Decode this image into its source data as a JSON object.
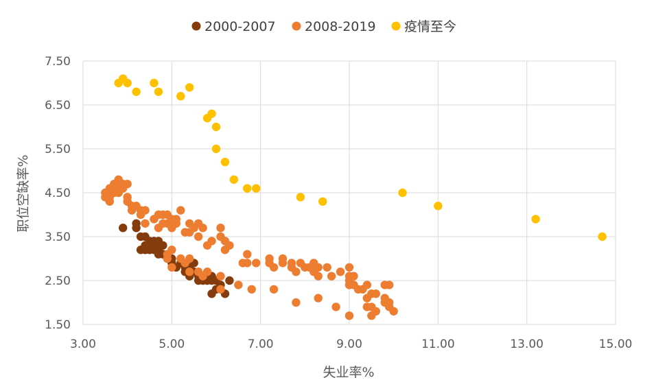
{
  "chart_data": {
    "type": "scatter",
    "title": "",
    "xlabel": "失业率%",
    "ylabel": "职位空缺率%",
    "xlim": [
      3.0,
      15.0
    ],
    "ylim": [
      1.5,
      7.5
    ],
    "xticks": [
      "3.00",
      "5.00",
      "7.00",
      "9.00",
      "11.00",
      "13.00",
      "15.00"
    ],
    "yticks": [
      "1.50",
      "2.50",
      "3.50",
      "4.50",
      "5.50",
      "6.50",
      "7.50"
    ],
    "grid": "vertical-and-horizontal",
    "legend_position": "top-center",
    "series": [
      {
        "name": "2000-2007",
        "color": "#843C0C",
        "points": [
          [
            3.9,
            3.7
          ],
          [
            4.2,
            3.7
          ],
          [
            4.2,
            3.8
          ],
          [
            4.3,
            3.5
          ],
          [
            4.3,
            3.2
          ],
          [
            4.4,
            3.5
          ],
          [
            4.4,
            3.3
          ],
          [
            4.4,
            3.2
          ],
          [
            4.5,
            3.4
          ],
          [
            4.5,
            3.3
          ],
          [
            4.5,
            3.2
          ],
          [
            4.6,
            3.4
          ],
          [
            4.6,
            3.3
          ],
          [
            4.6,
            3.2
          ],
          [
            4.7,
            3.4
          ],
          [
            4.7,
            3.3
          ],
          [
            4.7,
            3.2
          ],
          [
            4.7,
            3.1
          ],
          [
            4.8,
            3.1
          ],
          [
            4.8,
            3.3
          ],
          [
            4.9,
            3.0
          ],
          [
            5.0,
            2.9
          ],
          [
            5.0,
            3.0
          ],
          [
            5.1,
            2.8
          ],
          [
            5.2,
            2.9
          ],
          [
            5.3,
            2.8
          ],
          [
            5.3,
            2.7
          ],
          [
            5.4,
            2.8
          ],
          [
            5.4,
            2.6
          ],
          [
            5.5,
            2.9
          ],
          [
            5.5,
            2.7
          ],
          [
            5.6,
            2.6
          ],
          [
            5.6,
            2.5
          ],
          [
            5.7,
            2.6
          ],
          [
            5.7,
            2.5
          ],
          [
            5.8,
            2.5
          ],
          [
            5.8,
            2.6
          ],
          [
            5.9,
            2.5
          ],
          [
            5.9,
            2.6
          ],
          [
            6.0,
            2.5
          ],
          [
            6.0,
            2.3
          ],
          [
            5.9,
            2.2
          ],
          [
            6.1,
            2.4
          ],
          [
            6.2,
            2.2
          ],
          [
            6.3,
            2.5
          ]
        ]
      },
      {
        "name": "2008-2019",
        "color": "#ED7D31",
        "points": [
          [
            3.5,
            4.5
          ],
          [
            3.5,
            4.4
          ],
          [
            3.6,
            4.6
          ],
          [
            3.6,
            4.4
          ],
          [
            3.6,
            4.3
          ],
          [
            3.7,
            4.7
          ],
          [
            3.7,
            4.5
          ],
          [
            3.8,
            4.8
          ],
          [
            3.8,
            4.6
          ],
          [
            3.8,
            4.5
          ],
          [
            3.9,
            4.7
          ],
          [
            3.9,
            4.6
          ],
          [
            4.0,
            4.7
          ],
          [
            4.0,
            4.4
          ],
          [
            4.0,
            4.3
          ],
          [
            4.1,
            4.2
          ],
          [
            4.1,
            4.1
          ],
          [
            4.2,
            4.2
          ],
          [
            4.3,
            4.1
          ],
          [
            4.3,
            4.0
          ],
          [
            4.4,
            4.1
          ],
          [
            4.4,
            3.8
          ],
          [
            4.6,
            3.9
          ],
          [
            4.7,
            4.0
          ],
          [
            4.7,
            3.7
          ],
          [
            4.8,
            4.0
          ],
          [
            4.8,
            3.8
          ],
          [
            4.9,
            4.0
          ],
          [
            4.9,
            3.8
          ],
          [
            5.0,
            3.9
          ],
          [
            5.0,
            3.7
          ],
          [
            5.1,
            3.9
          ],
          [
            5.1,
            3.8
          ],
          [
            5.2,
            4.1
          ],
          [
            5.3,
            3.6
          ],
          [
            5.4,
            3.8
          ],
          [
            5.4,
            3.6
          ],
          [
            5.5,
            3.7
          ],
          [
            5.6,
            3.8
          ],
          [
            5.6,
            3.5
          ],
          [
            5.7,
            3.7
          ],
          [
            5.8,
            3.3
          ],
          [
            5.9,
            3.4
          ],
          [
            6.1,
            3.7
          ],
          [
            6.1,
            3.5
          ],
          [
            6.2,
            3.4
          ],
          [
            6.3,
            3.3
          ],
          [
            6.2,
            3.2
          ],
          [
            4.9,
            3.1
          ],
          [
            5.0,
            3.2
          ],
          [
            5.0,
            2.8
          ],
          [
            4.9,
            3.0
          ],
          [
            5.2,
            3.0
          ],
          [
            5.3,
            2.9
          ],
          [
            5.4,
            3.0
          ],
          [
            5.4,
            2.7
          ],
          [
            5.6,
            2.7
          ],
          [
            5.7,
            2.6
          ],
          [
            5.8,
            2.7
          ],
          [
            6.1,
            2.6
          ],
          [
            6.1,
            2.3
          ],
          [
            6.5,
            2.4
          ],
          [
            6.6,
            2.9
          ],
          [
            6.7,
            3.1
          ],
          [
            6.7,
            2.9
          ],
          [
            6.9,
            2.9
          ],
          [
            6.8,
            2.3
          ],
          [
            7.2,
            3.0
          ],
          [
            7.2,
            2.9
          ],
          [
            7.3,
            2.8
          ],
          [
            7.3,
            2.3
          ],
          [
            7.5,
            3.0
          ],
          [
            7.5,
            2.9
          ],
          [
            7.7,
            2.9
          ],
          [
            7.7,
            2.8
          ],
          [
            7.8,
            2.7
          ],
          [
            7.8,
            2.0
          ],
          [
            7.9,
            2.9
          ],
          [
            8.0,
            2.8
          ],
          [
            8.1,
            2.8
          ],
          [
            8.2,
            2.9
          ],
          [
            8.2,
            2.7
          ],
          [
            8.3,
            2.6
          ],
          [
            8.3,
            2.8
          ],
          [
            8.3,
            2.1
          ],
          [
            8.5,
            2.8
          ],
          [
            8.6,
            2.6
          ],
          [
            8.7,
            1.9
          ],
          [
            8.8,
            2.7
          ],
          [
            9.0,
            2.8
          ],
          [
            9.0,
            2.6
          ],
          [
            9.0,
            2.5
          ],
          [
            9.0,
            2.4
          ],
          [
            9.0,
            1.7
          ],
          [
            9.1,
            2.6
          ],
          [
            9.1,
            2.4
          ],
          [
            9.2,
            2.3
          ],
          [
            9.3,
            2.3
          ],
          [
            9.4,
            2.4
          ],
          [
            9.4,
            2.1
          ],
          [
            9.4,
            1.9
          ],
          [
            9.5,
            2.2
          ],
          [
            9.5,
            1.9
          ],
          [
            9.5,
            1.7
          ],
          [
            9.6,
            2.2
          ],
          [
            9.6,
            1.8
          ],
          [
            9.8,
            2.4
          ],
          [
            9.8,
            2.1
          ],
          [
            9.8,
            2.0
          ],
          [
            9.9,
            2.4
          ],
          [
            9.9,
            2.0
          ],
          [
            9.9,
            1.9
          ],
          [
            10.0,
            1.8
          ]
        ]
      },
      {
        "name": "疫情至今",
        "color": "#FFC000",
        "points": [
          [
            3.8,
            7.0
          ],
          [
            3.9,
            7.1
          ],
          [
            4.0,
            7.0
          ],
          [
            4.2,
            6.8
          ],
          [
            4.6,
            7.0
          ],
          [
            4.7,
            6.8
          ],
          [
            5.2,
            6.7
          ],
          [
            5.4,
            6.9
          ],
          [
            5.8,
            6.2
          ],
          [
            5.9,
            6.3
          ],
          [
            6.0,
            6.0
          ],
          [
            6.0,
            5.5
          ],
          [
            6.2,
            5.2
          ],
          [
            6.4,
            4.8
          ],
          [
            6.7,
            4.6
          ],
          [
            6.9,
            4.6
          ],
          [
            7.9,
            4.4
          ],
          [
            8.4,
            4.3
          ],
          [
            10.2,
            4.5
          ],
          [
            11.0,
            4.2
          ],
          [
            13.2,
            3.9
          ],
          [
            14.7,
            3.5
          ]
        ]
      }
    ]
  }
}
